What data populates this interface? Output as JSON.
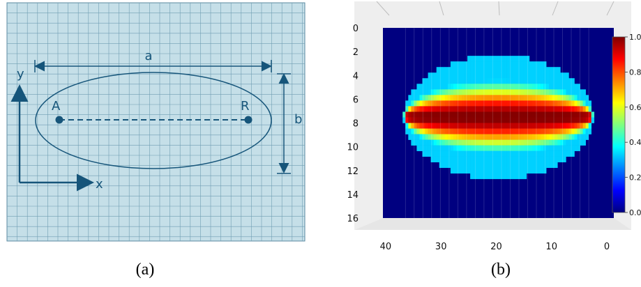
{
  "panel_a": {
    "caption": "(a)",
    "label_a": "a",
    "label_b": "b",
    "label_x": "x",
    "label_y": "y",
    "point_A": "A",
    "point_R": "R",
    "colors": {
      "grid_bg": "#c5dfe8",
      "grid_line": "#5a8aa0",
      "ink": "#16557a"
    }
  },
  "panel_b": {
    "caption": "(b)"
  },
  "chart_data": {
    "type": "heatmap",
    "title": "",
    "xlabel": "",
    "ylabel": "",
    "x_ticks": [
      "40",
      "30",
      "20",
      "10",
      "0"
    ],
    "y_ticks": [
      "0",
      "2",
      "4",
      "6",
      "8",
      "10",
      "12",
      "14",
      "16"
    ],
    "xlim": [
      41,
      0
    ],
    "ylim": [
      0,
      16
    ],
    "colorbar": {
      "min": 0.0,
      "max": 1.0,
      "ticks": [
        "0.0",
        "0.2",
        "0.4",
        "0.6",
        "0.8",
        "1.0"
      ],
      "colormap": "jet"
    },
    "description": "elliptical field with max 1.0 along row ~7.5, center x ~20.5",
    "ellipse": {
      "cx": 20.5,
      "cy": 7.5,
      "rx": 16.8,
      "ry": 5.2,
      "peak": 1.0
    }
  }
}
